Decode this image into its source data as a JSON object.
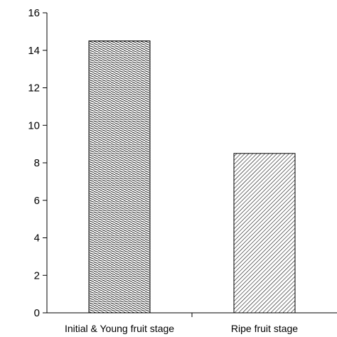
{
  "chart_data": {
    "type": "bar",
    "categories": [
      "Initial & Young fruit stage",
      "Ripe fruit stage"
    ],
    "values": [
      14.5,
      8.5
    ],
    "ylabel": "",
    "ylim": [
      0,
      16
    ],
    "yticks": [
      0,
      2,
      4,
      6,
      8,
      10,
      12,
      14,
      16
    ],
    "grid": false,
    "bar_fill": "hatched",
    "bar_stroke": "#000000"
  }
}
